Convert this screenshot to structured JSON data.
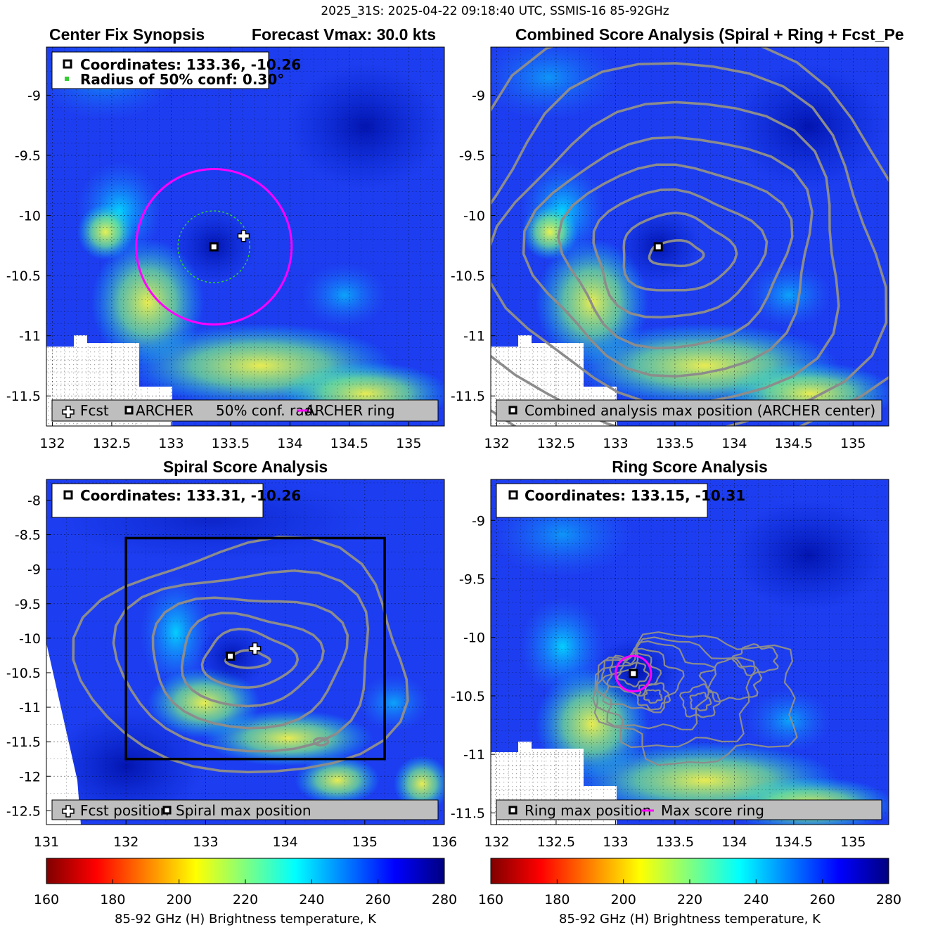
{
  "figure": {
    "suptitle": "2025_31S: 2025-04-22 09:18:40 UTC, SSMIS-16 85-92GHz"
  },
  "colors": {
    "ring": "#ff00ff",
    "radius_conf": "#33cc33",
    "contour": "#8c8c8c",
    "legend_bg": "#bebebe"
  },
  "chart_data": [
    {
      "id": "center-fix-synopsis",
      "type": "heatmap",
      "title": "Center Fix Synopsis",
      "title_right": "Forecast Vmax: 30.0 kts",
      "xticks": [
        "132",
        "132.5",
        "133",
        "133.5",
        "134",
        "134.5",
        "135"
      ],
      "yticks": [
        "-9",
        "-9.5",
        "-10",
        "-10.5",
        "-11",
        "-11.5"
      ],
      "xlim": [
        131.95,
        135.3
      ],
      "ylim": [
        -11.75,
        -8.6
      ],
      "grid": true,
      "info_lines": [
        "Coordinates: 133.36, -10.26",
        "Radius of 50% conf: 0.30°"
      ],
      "legend": [
        "Fcst",
        "ARCHER",
        "50% conf. rad.",
        "ARCHER ring"
      ],
      "legend_placement": "bottom",
      "archer_center": [
        133.36,
        -10.26
      ],
      "fcst_position": [
        133.61,
        -10.17
      ],
      "conf_radius_deg": 0.3,
      "archer_ring_radius_deg": 0.65
    },
    {
      "id": "combined-score-analysis",
      "type": "heatmap",
      "title": "Combined Score Analysis (Spiral + Ring + Fcst_Pe",
      "xticks": [
        "132",
        "132.5",
        "133",
        "133.5",
        "134",
        "134.5",
        "135"
      ],
      "yticks": [
        "-9",
        "-9.5",
        "-10",
        "-10.5",
        "-11",
        "-11.5"
      ],
      "xlim": [
        131.95,
        135.3
      ],
      "ylim": [
        -11.75,
        -8.6
      ],
      "grid": true,
      "legend": [
        "Combined analysis max position (ARCHER center)"
      ],
      "legend_placement": "bottom",
      "max_position": [
        133.36,
        -10.26
      ]
    },
    {
      "id": "spiral-score-analysis",
      "type": "heatmap",
      "title": "Spiral Score Analysis",
      "xticks": [
        "131",
        "132",
        "133",
        "134",
        "135",
        "136"
      ],
      "yticks": [
        "-8",
        "-8.5",
        "-9",
        "-9.5",
        "-10",
        "-10.5",
        "-11",
        "-11.5",
        "-12",
        "-12.5"
      ],
      "xlim": [
        131,
        136
      ],
      "ylim": [
        -12.7,
        -7.7
      ],
      "grid": true,
      "info_lines": [
        "Coordinates: 133.31, -10.26"
      ],
      "legend": [
        "Fcst position",
        "Spiral max position"
      ],
      "legend_placement": "bottom",
      "spiral_max": [
        133.31,
        -10.26
      ],
      "fcst_position": [
        133.62,
        -10.15
      ],
      "search_box": [
        132,
        -11.75,
        135.25,
        -8.55
      ]
    },
    {
      "id": "ring-score-analysis",
      "type": "heatmap",
      "title": "Ring Score Analysis",
      "xticks": [
        "132",
        "132.5",
        "133",
        "133.5",
        "134",
        "134.5",
        "135"
      ],
      "yticks": [
        "-9",
        "-9.5",
        "-10",
        "-10.5",
        "-11",
        "-11.5"
      ],
      "xlim": [
        131.95,
        135.3
      ],
      "ylim": [
        -11.6,
        -8.65
      ],
      "grid": true,
      "info_lines": [
        "Coordinates: 133.15, -10.31"
      ],
      "legend": [
        "Ring max position",
        "Max score ring"
      ],
      "legend_placement": "bottom",
      "ring_max": [
        133.15,
        -10.31
      ],
      "ring_radius_deg": 0.15
    }
  ],
  "colorbars": [
    {
      "ticks": [
        "160",
        "180",
        "200",
        "220",
        "240",
        "260",
        "280"
      ],
      "label": "85-92 GHz (H) Brightness temperature, K",
      "range": [
        160,
        280
      ],
      "colormap": "jet-reversed"
    },
    {
      "ticks": [
        "160",
        "180",
        "200",
        "220",
        "240",
        "260",
        "280"
      ],
      "label": "85-92 GHz (H) Brightness temperature, K",
      "range": [
        160,
        280
      ],
      "colormap": "jet-reversed"
    }
  ]
}
